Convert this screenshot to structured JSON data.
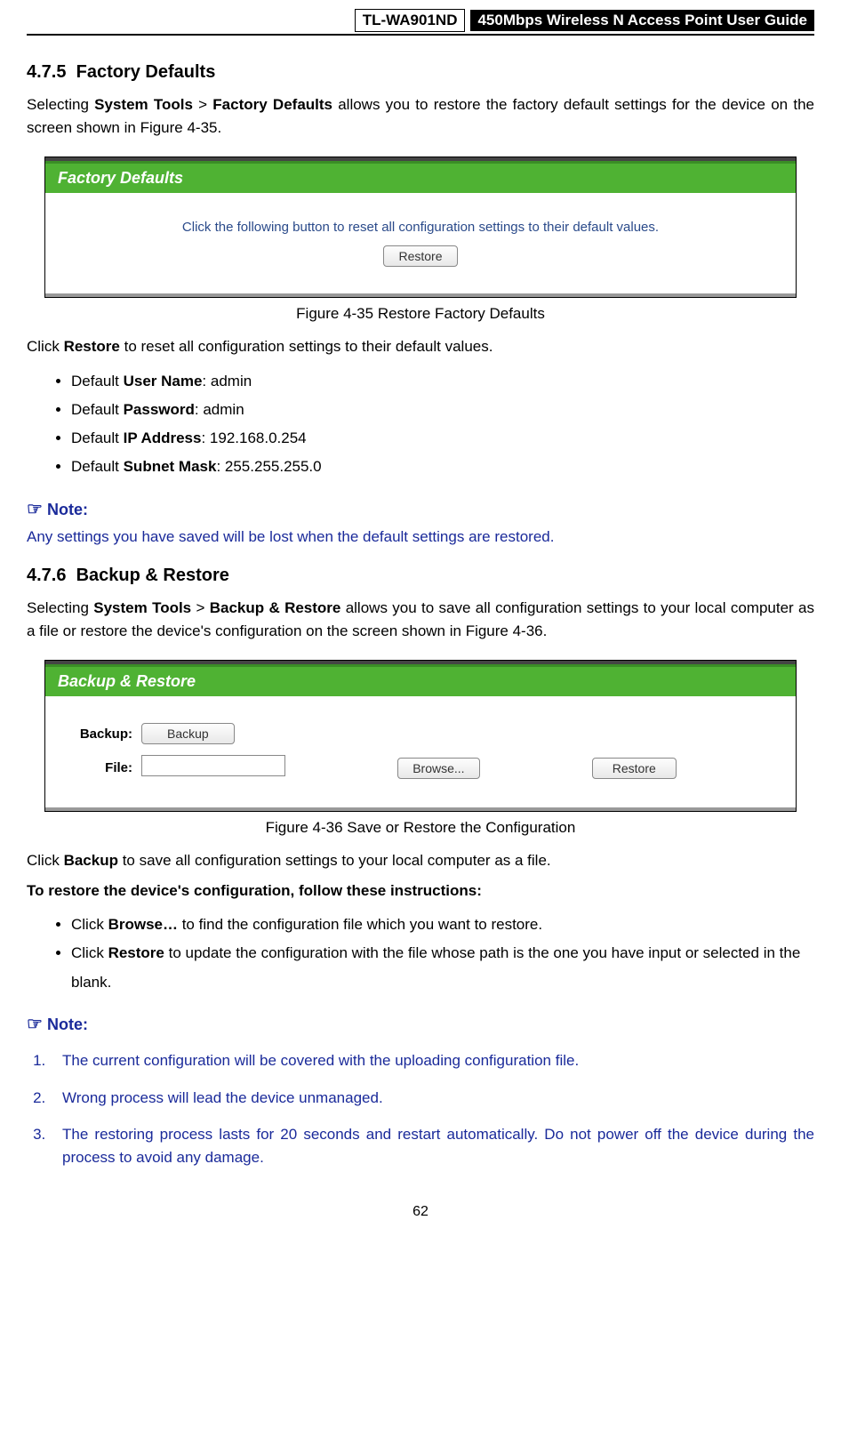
{
  "header": {
    "model": "TL-WA901ND",
    "title": "450Mbps Wireless N Access Point User Guide"
  },
  "section1": {
    "number": "4.7.5",
    "title": "Factory Defaults",
    "intro_pre": "Selecting ",
    "intro_b1": "System Tools",
    "intro_mid1": " > ",
    "intro_b2": "Factory Defaults",
    "intro_post": " allows you to restore the factory default settings for the device on the screen shown in Figure 4-35."
  },
  "figure1": {
    "header": "Factory Defaults",
    "body_text": "Click the following button to reset all configuration settings to their default values.",
    "button": "Restore",
    "caption": "Figure 4-35 Restore Factory Defaults"
  },
  "after_fig1": {
    "pre": "Click ",
    "b": "Restore",
    "post": " to reset all configuration settings to their default values."
  },
  "defaults": {
    "items": [
      {
        "pre": "Default ",
        "b": "User Name",
        "post": ": admin"
      },
      {
        "pre": "Default ",
        "b": "Password",
        "post": ": admin"
      },
      {
        "pre": "Default ",
        "b": "IP Address",
        "post": ": 192.168.0.254"
      },
      {
        "pre": "Default ",
        "b": "Subnet Mask",
        "post": ": 255.255.255.0"
      }
    ]
  },
  "note1": {
    "heading": "Note:",
    "text": "Any settings you have saved will be lost when the default settings are restored."
  },
  "section2": {
    "number": "4.7.6",
    "title": "Backup & Restore",
    "intro_pre": "Selecting ",
    "intro_b1": "System Tools",
    "intro_mid1": " > ",
    "intro_b2": "Backup & Restore",
    "intro_post": " allows you to save all configuration settings to your local computer as a file or restore the device's configuration on the screen shown in Figure 4-36."
  },
  "figure2": {
    "header": "Backup & Restore",
    "label_backup": "Backup:",
    "label_file": "File:",
    "btn_backup": "Backup",
    "btn_browse": "Browse...",
    "btn_restore": "Restore",
    "caption": "Figure 4-36 Save or Restore the Configuration"
  },
  "after_fig2": {
    "pre": "Click ",
    "b": "Backup",
    "post": " to save all configuration settings to your local computer as a file."
  },
  "instructions_heading": "To restore the device's configuration, follow these instructions:",
  "instructions": {
    "items": [
      {
        "pre": "Click ",
        "b": "Browse…",
        "post": " to find the configuration file which you want to restore."
      },
      {
        "pre": "Click ",
        "b": "Restore",
        "post": " to update the configuration with the file whose path is the one you have input or selected in the blank."
      }
    ]
  },
  "note2": {
    "heading": "Note:",
    "items": [
      "The current configuration will be covered with the uploading configuration file.",
      "Wrong process will lead the device unmanaged.",
      "The restoring process lasts for 20 seconds and restart automatically. Do not power off the device during the process to avoid any damage."
    ]
  },
  "page_number": "62",
  "colors": {
    "green": "#4fb233",
    "note_blue": "#1a2a9a",
    "fig_text_blue": "#2a4a8a"
  }
}
